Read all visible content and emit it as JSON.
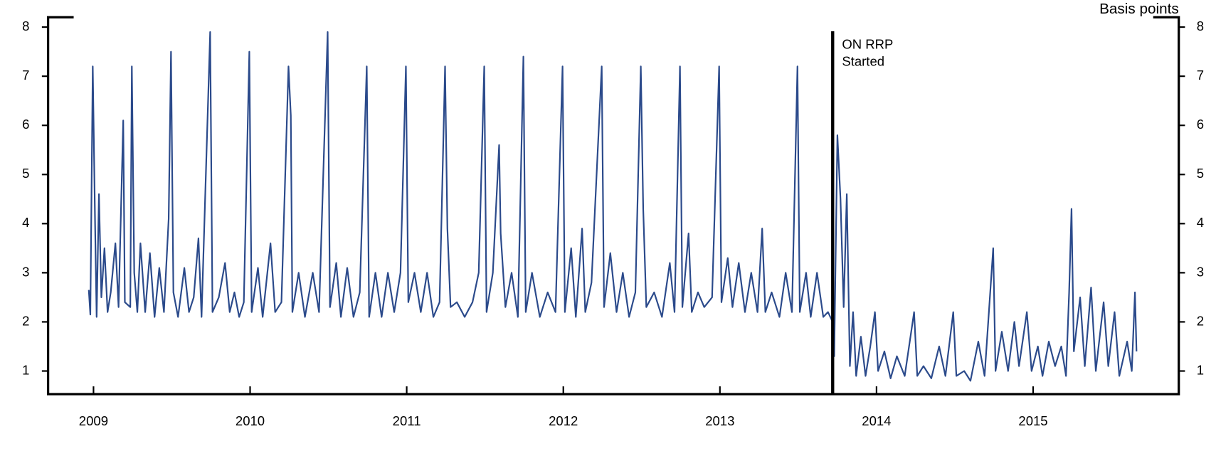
{
  "chart_data": {
    "type": "line",
    "y_label": "Basis points",
    "annotation": {
      "x": 2013.72,
      "text": [
        "ON RRP",
        "Started"
      ]
    },
    "xlim": [
      2008.71,
      2015.93
    ],
    "xticks": [
      2009,
      2010,
      2011,
      2012,
      2013,
      2014,
      2015
    ],
    "ylim": [
      0.53,
      8.2
    ],
    "yticks": [
      1,
      2,
      3,
      4,
      5,
      6,
      7,
      8
    ],
    "y2lim": [
      0.53,
      8.2
    ],
    "y2ticks": [
      1,
      2,
      3,
      4,
      5,
      6,
      7,
      8
    ],
    "series": [
      {
        "color": "#2b4a8b",
        "x": [
          2008.97,
          2008.98,
          2008.995,
          2009.01,
          2009.02,
          2009.035,
          2009.05,
          2009.07,
          2009.09,
          2009.11,
          2009.14,
          2009.16,
          2009.19,
          2009.2,
          2009.235,
          2009.245,
          2009.26,
          2009.28,
          2009.3,
          2009.33,
          2009.36,
          2009.39,
          2009.42,
          2009.45,
          2009.48,
          2009.495,
          2009.51,
          2009.54,
          2009.58,
          2009.61,
          2009.64,
          2009.67,
          2009.69,
          2009.745,
          2009.76,
          2009.8,
          2009.84,
          2009.87,
          2009.9,
          2009.93,
          2009.96,
          2009.995,
          2010.01,
          2010.05,
          2010.08,
          2010.13,
          2010.16,
          2010.2,
          2010.245,
          2010.26,
          2010.27,
          2010.31,
          2010.35,
          2010.4,
          2010.44,
          2010.495,
          2010.51,
          2010.55,
          2010.58,
          2010.62,
          2010.66,
          2010.7,
          2010.745,
          2010.76,
          2010.8,
          2010.84,
          2010.88,
          2010.92,
          2010.96,
          2010.995,
          2011.01,
          2011.05,
          2011.09,
          2011.13,
          2011.17,
          2011.21,
          2011.245,
          2011.26,
          2011.28,
          2011.32,
          2011.37,
          2011.42,
          2011.46,
          2011.495,
          2011.51,
          2011.55,
          2011.59,
          2011.6,
          2011.63,
          2011.67,
          2011.71,
          2011.745,
          2011.76,
          2011.8,
          2011.85,
          2011.9,
          2011.95,
          2011.995,
          2012.01,
          2012.05,
          2012.08,
          2012.12,
          2012.14,
          2012.18,
          2012.245,
          2012.26,
          2012.3,
          2012.34,
          2012.38,
          2012.42,
          2012.46,
          2012.495,
          2012.51,
          2012.53,
          2012.58,
          2012.63,
          2012.68,
          2012.71,
          2012.745,
          2012.76,
          2012.8,
          2012.82,
          2012.86,
          2012.9,
          2012.95,
          2012.995,
          2013.01,
          2013.05,
          2013.08,
          2013.12,
          2013.16,
          2013.2,
          2013.24,
          2013.27,
          2013.29,
          2013.33,
          2013.38,
          2013.42,
          2013.46,
          2013.495,
          2013.51,
          2013.55,
          2013.58,
          2013.62,
          2013.66,
          2013.69,
          2013.72,
          2013.73,
          2013.75,
          2013.77,
          2013.79,
          2013.81,
          2013.83,
          2013.85,
          2013.87,
          2013.9,
          2013.93,
          2013.96,
          2013.99,
          2014.01,
          2014.05,
          2014.09,
          2014.13,
          2014.18,
          2014.24,
          2014.26,
          2014.3,
          2014.35,
          2014.4,
          2014.44,
          2014.49,
          2014.51,
          2014.56,
          2014.6,
          2014.65,
          2014.69,
          2014.745,
          2014.76,
          2014.8,
          2014.84,
          2014.88,
          2014.91,
          2014.96,
          2014.99,
          2015.03,
          2015.06,
          2015.1,
          2015.14,
          2015.18,
          2015.21,
          2015.23,
          2015.245,
          2015.26,
          2015.3,
          2015.33,
          2015.37,
          2015.4,
          2015.45,
          2015.48,
          2015.52,
          2015.55,
          2015.6,
          2015.63,
          2015.65,
          2015.66
        ],
        "values": [
          2.65,
          2.15,
          7.2,
          4.0,
          2.1,
          4.6,
          2.5,
          3.5,
          2.2,
          2.6,
          3.6,
          2.3,
          6.1,
          2.4,
          2.3,
          7.2,
          3.0,
          2.2,
          3.6,
          2.2,
          3.4,
          2.1,
          3.1,
          2.2,
          4.1,
          7.5,
          2.6,
          2.1,
          3.1,
          2.2,
          2.5,
          3.7,
          2.1,
          7.9,
          2.2,
          2.5,
          3.2,
          2.2,
          2.6,
          2.1,
          2.4,
          7.5,
          2.2,
          3.1,
          2.1,
          3.6,
          2.2,
          2.4,
          7.2,
          6.2,
          2.2,
          3.0,
          2.1,
          3.0,
          2.2,
          7.9,
          2.3,
          3.2,
          2.1,
          3.1,
          2.1,
          2.6,
          7.2,
          2.1,
          3.0,
          2.1,
          3.0,
          2.2,
          3.0,
          7.2,
          2.4,
          3.0,
          2.2,
          3.0,
          2.1,
          2.4,
          7.2,
          3.9,
          2.3,
          2.4,
          2.1,
          2.4,
          3.0,
          7.2,
          2.2,
          3.0,
          5.6,
          3.8,
          2.3,
          3.0,
          2.1,
          7.4,
          2.2,
          3.0,
          2.1,
          2.6,
          2.2,
          7.2,
          2.2,
          3.5,
          2.1,
          3.9,
          2.2,
          2.8,
          7.2,
          2.3,
          3.4,
          2.2,
          3.0,
          2.1,
          2.6,
          7.2,
          4.3,
          2.3,
          2.6,
          2.1,
          3.2,
          2.2,
          7.2,
          2.3,
          3.8,
          2.2,
          2.6,
          2.3,
          2.5,
          7.2,
          2.4,
          3.3,
          2.3,
          3.2,
          2.2,
          3.0,
          2.2,
          3.9,
          2.2,
          2.6,
          2.1,
          3.0,
          2.2,
          7.2,
          2.2,
          3.0,
          2.1,
          3.0,
          2.1,
          2.2,
          2.0,
          1.3,
          5.8,
          4.5,
          2.3,
          4.6,
          1.1,
          2.2,
          0.9,
          1.7,
          0.9,
          1.5,
          2.2,
          1.0,
          1.4,
          0.85,
          1.3,
          0.9,
          2.2,
          0.9,
          1.1,
          0.85,
          1.5,
          0.9,
          2.2,
          0.9,
          1.0,
          0.8,
          1.6,
          0.9,
          3.5,
          1.0,
          1.8,
          1.0,
          2.0,
          1.1,
          2.2,
          1.0,
          1.5,
          0.9,
          1.6,
          1.1,
          1.5,
          0.9,
          2.6,
          4.3,
          1.4,
          2.5,
          1.1,
          2.7,
          1.0,
          2.4,
          1.1,
          2.2,
          0.9,
          1.6,
          1.0,
          2.6,
          1.4
        ]
      }
    ]
  }
}
